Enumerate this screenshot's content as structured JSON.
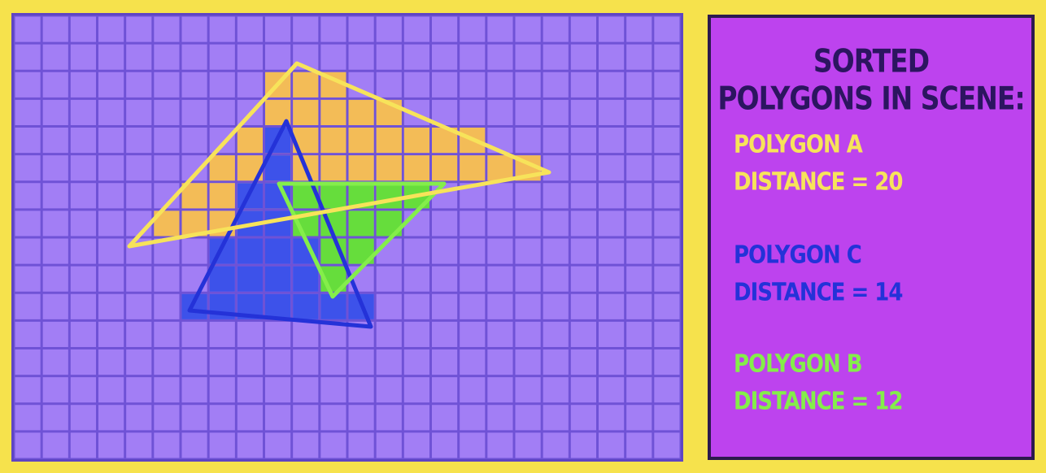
{
  "heading": {
    "line1": "SORTED",
    "line2": "POLYGONS IN SCENE:"
  },
  "polygons": [
    {
      "name": "POLYGON A",
      "distance_text": "DISTANCE = 20",
      "distance": 20,
      "color": "#f7e35a",
      "fill": "#f3bc57"
    },
    {
      "name": "POLYGON C",
      "distance_text": "DISTANCE = 14",
      "distance": 14,
      "color": "#2432d8",
      "fill": "#3d52ea"
    },
    {
      "name": "POLYGON B",
      "distance_text": "DISTANCE = 12",
      "distance": 12,
      "color": "#84ee4a",
      "fill": "#66dd3c"
    }
  ],
  "colors": {
    "background": "#f6e24c",
    "grid_cell": "#a27ef5",
    "grid_line": "#6f52d6",
    "panel": "#bd43ee",
    "heading_text": "#2c1560"
  }
}
